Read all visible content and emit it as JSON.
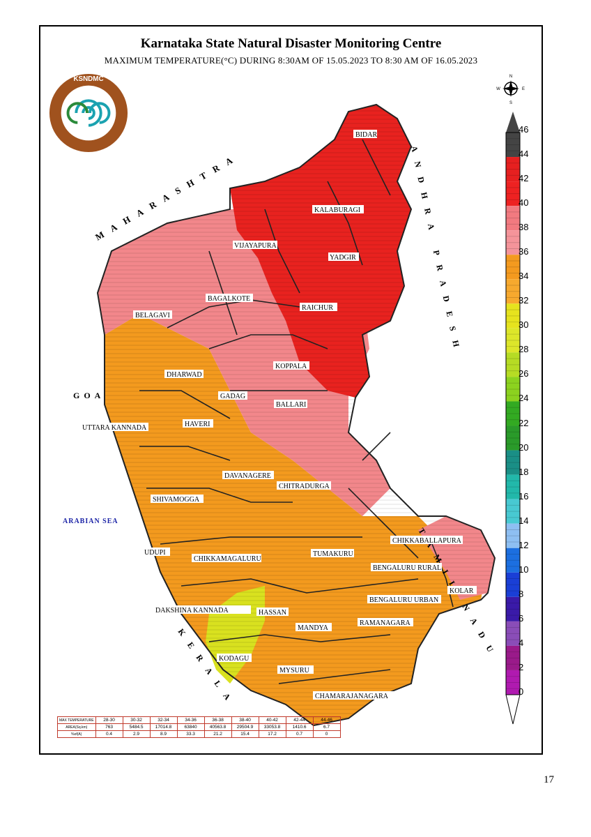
{
  "title": "Karnataka State Natural Disaster Monitoring Centre",
  "subtitle": "MAXIMUM TEMPERATURE(°C) DURING 8:30AM OF 15.05.2023 TO 8:30 AM OF 16.05.2023",
  "page_number": "17",
  "logo": {
    "icon": "ksndmc-logo-icon",
    "text": "KSNDMC"
  },
  "compass": {
    "icon": "compass-icon",
    "n": "N",
    "s": "S",
    "e": "E",
    "w": "W"
  },
  "neighbours": {
    "maharashtra": "MAHARASHTRA",
    "goa": "GOA",
    "arabian_sea": "ARABIAN SEA",
    "kerala": "KERALA",
    "andhra_pradesh": "ANDHRA PRADESH",
    "tamil_nadu": "TAMIL NADU"
  },
  "colors": {
    "deep_red": "#e8221f",
    "pink": "#f2878b",
    "orange": "#f39a1e",
    "yellow_green": "#d9e11f",
    "sea": "#1a22a6",
    "border": "#333333"
  },
  "districts": [
    {
      "name": "BIDAR",
      "band": "40-42"
    },
    {
      "name": "KALABURAGI",
      "band": "40-42"
    },
    {
      "name": "VIJAYAPURA",
      "band": "38-40"
    },
    {
      "name": "YADGIR",
      "band": "40-42"
    },
    {
      "name": "BAGALKOTE",
      "band": "36-38"
    },
    {
      "name": "RAICHUR",
      "band": "40-42"
    },
    {
      "name": "BELAGAVI",
      "band": "34-36"
    },
    {
      "name": "KOPPALA",
      "band": "36-38"
    },
    {
      "name": "DHARWAD",
      "band": "34-36"
    },
    {
      "name": "GADAG",
      "band": "36-38"
    },
    {
      "name": "BALLARI",
      "band": "36-38"
    },
    {
      "name": "UTTARA KANNADA",
      "band": "32-34"
    },
    {
      "name": "HAVERI",
      "band": "34-36"
    },
    {
      "name": "DAVANAGERE",
      "band": "34-36"
    },
    {
      "name": "CHITRADURGA",
      "band": "36-38"
    },
    {
      "name": "SHIVAMOGGA",
      "band": "32-34"
    },
    {
      "name": "UDUPI",
      "band": "32-34"
    },
    {
      "name": "CHIKKAMAGALURU",
      "band": "32-34"
    },
    {
      "name": "TUMAKURU",
      "band": "34-36"
    },
    {
      "name": "CHIKKABALLAPURA",
      "band": "34-36"
    },
    {
      "name": "BENGALURU RURAL",
      "band": "34-36"
    },
    {
      "name": "KOLAR",
      "band": "34-36"
    },
    {
      "name": "BENGALURU URBAN",
      "band": "34-36"
    },
    {
      "name": "DAKSHINA KANNADA",
      "band": "32-34"
    },
    {
      "name": "HASSAN",
      "band": "32-34"
    },
    {
      "name": "MANDYA",
      "band": "32-34"
    },
    {
      "name": "RAMANAGARA",
      "band": "34-36"
    },
    {
      "name": "KODAGU",
      "band": "30-32"
    },
    {
      "name": "MYSURU",
      "band": "32-34"
    },
    {
      "name": "CHAMARAJANAGARA",
      "band": "32-34"
    }
  ],
  "legend": {
    "labels": [
      "46",
      "44",
      "42",
      "40",
      "38",
      "36",
      "34",
      "32",
      "30",
      "28",
      "26",
      "24",
      "22",
      "20",
      "18",
      "16",
      "14",
      "12",
      "10",
      "8",
      "6",
      "4",
      "2",
      "0"
    ],
    "bands": [
      {
        "from": 44,
        "to": 46,
        "color": "#444444"
      },
      {
        "from": 42,
        "to": 44,
        "color": "#e62020"
      },
      {
        "from": 40,
        "to": 42,
        "color": "#ee2222"
      },
      {
        "from": 38,
        "to": 40,
        "color": "#f27a80"
      },
      {
        "from": 36,
        "to": 38,
        "color": "#f5949a"
      },
      {
        "from": 34,
        "to": 36,
        "color": "#f49a1f"
      },
      {
        "from": 32,
        "to": 34,
        "color": "#f7a92e"
      },
      {
        "from": 30,
        "to": 32,
        "color": "#e6e31e"
      },
      {
        "from": 28,
        "to": 30,
        "color": "#dde62a"
      },
      {
        "from": 26,
        "to": 28,
        "color": "#b6dc24"
      },
      {
        "from": 24,
        "to": 26,
        "color": "#8cd21f"
      },
      {
        "from": 22,
        "to": 24,
        "color": "#33aa22"
      },
      {
        "from": 20,
        "to": 22,
        "color": "#2a9a2a"
      },
      {
        "from": 18,
        "to": 20,
        "color": "#1a8f86"
      },
      {
        "from": 16,
        "to": 18,
        "color": "#22b8aa"
      },
      {
        "from": 14,
        "to": 16,
        "color": "#48c9d2"
      },
      {
        "from": 12,
        "to": 14,
        "color": "#8ebff2"
      },
      {
        "from": 10,
        "to": 12,
        "color": "#1c6fe0"
      },
      {
        "from": 8,
        "to": 10,
        "color": "#1a3fd6"
      },
      {
        "from": 6,
        "to": 8,
        "color": "#3a1aa8"
      },
      {
        "from": 4,
        "to": 6,
        "color": "#8a4db8"
      },
      {
        "from": 2,
        "to": 4,
        "color": "#9a1a8a"
      },
      {
        "from": 0,
        "to": 2,
        "color": "#b01ab0"
      }
    ]
  },
  "stats_table": {
    "row_headers": [
      "MAX TEMPERATURE",
      "AREA(Sq.km)",
      "%of(A)"
    ],
    "columns": [
      "28-30",
      "30-32",
      "32-34",
      "34-36",
      "36-38",
      "38-40",
      "40-42",
      "42-44",
      "44-46"
    ],
    "area": [
      "763",
      "5484.5",
      "17014.8",
      "63840",
      "40563.8",
      "29504.9",
      "33053.8",
      "1410.6",
      "6.7"
    ],
    "percent": [
      "0.4",
      "2.9",
      "8.9",
      "33.3",
      "21.2",
      "15.4",
      "17.2",
      "0.7",
      "0"
    ]
  }
}
